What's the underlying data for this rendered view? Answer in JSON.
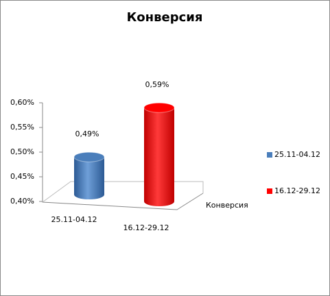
{
  "chart_data": {
    "type": "bar3d",
    "title": "Конверсия",
    "categories": [
      "25.11-04.12",
      "16.12-29.12"
    ],
    "depth_label": "Конверсия",
    "series": [
      {
        "name": "25.11-04.12",
        "color": "#4a7ebb",
        "values": [
          0.49,
          null
        ],
        "value_labels": [
          "0,49%",
          null
        ]
      },
      {
        "name": "16.12-29.12",
        "color": "#ff0000",
        "values": [
          null,
          0.59
        ],
        "value_labels": [
          null,
          "0,59%"
        ]
      }
    ],
    "ylim": [
      0.4,
      0.6
    ],
    "yticks": [
      {
        "value": 0.4,
        "label": "0,40%"
      },
      {
        "value": 0.45,
        "label": "0,45%"
      },
      {
        "value": 0.5,
        "label": "0,50%"
      },
      {
        "value": 0.55,
        "label": "0,55%"
      },
      {
        "value": 0.6,
        "label": "0,60%"
      }
    ],
    "legend": "right"
  }
}
